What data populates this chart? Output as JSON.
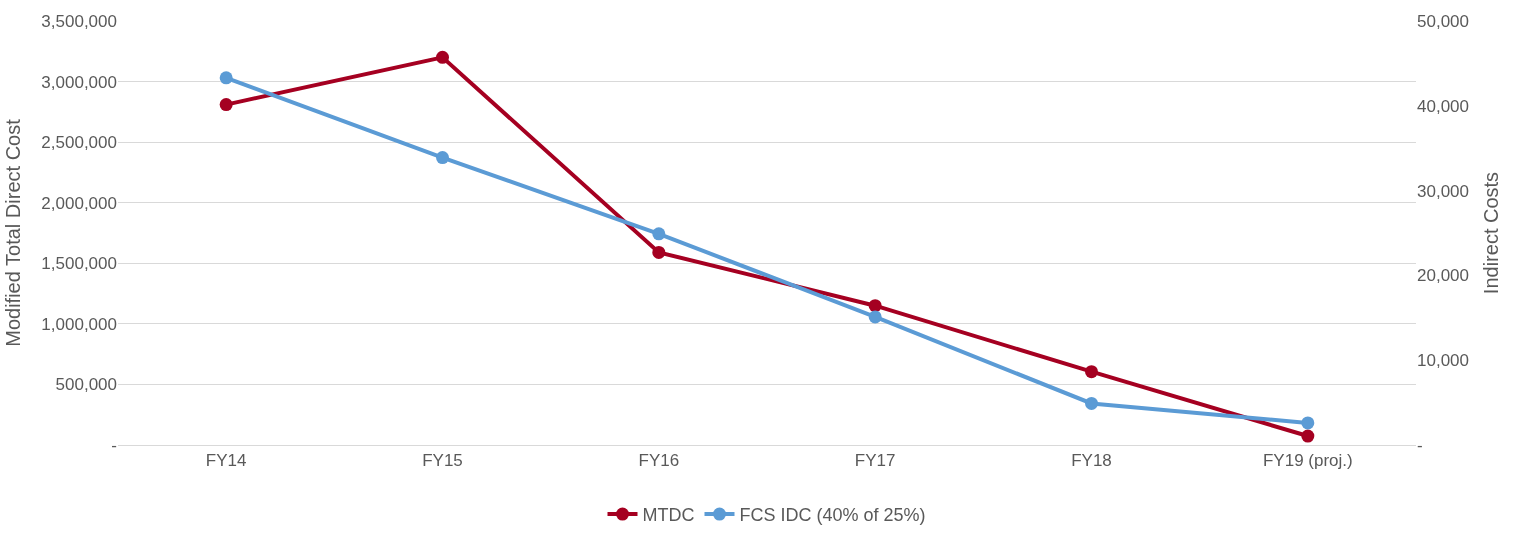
{
  "chart_data": {
    "type": "line",
    "ylabel": "Modified Total Direct Cost",
    "y2label": "Indirect Costs",
    "categories": [
      "FY14",
      "FY15",
      "FY16",
      "FY17",
      "FY18",
      "FY19 (proj.)"
    ],
    "series": [
      {
        "name": "MTDC",
        "color": "#a50021",
        "values": [
          2810000,
          3200000,
          1590000,
          1150000,
          605000,
          74000
        ]
      },
      {
        "name": "FCS IDC (40% of 25%)",
        "color": "#5b9bd5",
        "axis": "y2",
        "values": [
          43300,
          33900,
          24900,
          15100,
          4900,
          2600
        ]
      }
    ],
    "ylim": [
      0,
      3500000
    ],
    "yticks": [
      {
        "value": 0,
        "label": "-"
      },
      {
        "value": 500000,
        "label": "500,000"
      },
      {
        "value": 1000000,
        "label": "1,000,000"
      },
      {
        "value": 1500000,
        "label": "1,500,000"
      },
      {
        "value": 2000000,
        "label": "2,000,000"
      },
      {
        "value": 2500000,
        "label": "2,500,000"
      },
      {
        "value": 3000000,
        "label": "3,000,000"
      },
      {
        "value": 3500000,
        "label": "3,500,000"
      }
    ],
    "y2lim": [
      0,
      50000
    ],
    "y2ticks": [
      {
        "value": 0,
        "label": "-"
      },
      {
        "value": 10000,
        "label": "10,000"
      },
      {
        "value": 20000,
        "label": "20,000"
      },
      {
        "value": 30000,
        "label": "30,000"
      },
      {
        "value": 40000,
        "label": "40,000"
      },
      {
        "value": 50000,
        "label": "50,000"
      }
    ],
    "grid": "y",
    "legend": "bottom",
    "marker": "circle",
    "line_style": "solid"
  }
}
